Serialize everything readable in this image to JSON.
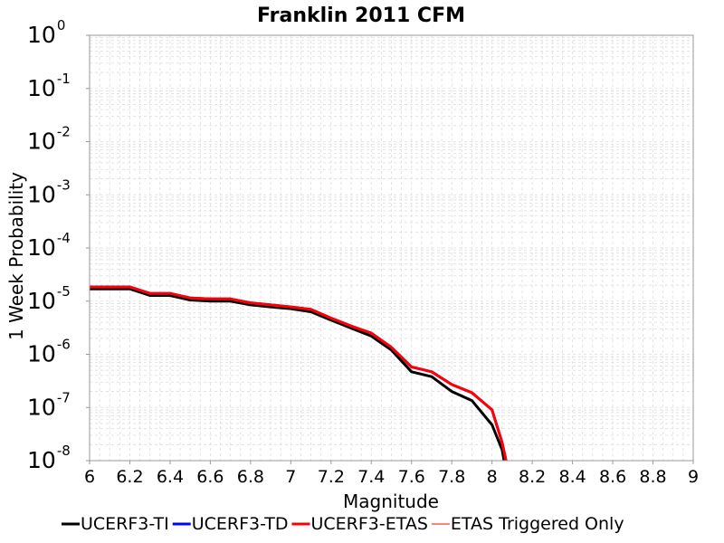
{
  "chart_data": {
    "type": "line",
    "title": "Franklin 2011 CFM",
    "xlabel": "Magnitude",
    "ylabel": "1 Week Probability",
    "xlim": [
      6,
      9
    ],
    "ylim": [
      1e-08,
      1
    ],
    "yscale": "log",
    "grid": true,
    "legend_placement": "bottom",
    "x_ticks": [
      "6",
      "6.2",
      "6.4",
      "6.6",
      "6.8",
      "7",
      "7.2",
      "7.4",
      "7.6",
      "7.8",
      "8",
      "8.2",
      "8.4",
      "8.6",
      "8.8",
      "9"
    ],
    "y_ticks": [
      {
        "base": "10",
        "exp": "0"
      },
      {
        "base": "10",
        "exp": "-1"
      },
      {
        "base": "10",
        "exp": "-2"
      },
      {
        "base": "10",
        "exp": "-3"
      },
      {
        "base": "10",
        "exp": "-4"
      },
      {
        "base": "10",
        "exp": "-5"
      },
      {
        "base": "10",
        "exp": "-6"
      },
      {
        "base": "10",
        "exp": "-7"
      },
      {
        "base": "10",
        "exp": "-8"
      }
    ],
    "series": [
      {
        "name": "UCERF3-TI",
        "color": "#000000",
        "x": [
          6.0,
          6.1,
          6.2,
          6.3,
          6.4,
          6.5,
          6.6,
          6.7,
          6.8,
          6.9,
          7.0,
          7.1,
          7.2,
          7.3,
          7.4,
          7.5,
          7.6,
          7.7,
          7.8,
          7.9,
          8.0,
          8.05,
          8.06
        ],
        "y": [
          1.7e-05,
          1.7e-05,
          1.7e-05,
          1.28e-05,
          1.28e-05,
          1.05e-05,
          1e-05,
          1e-05,
          8.5e-06,
          7.8e-06,
          7.2e-06,
          6.3e-06,
          4.4e-06,
          3.1e-06,
          2.2e-06,
          1.2e-06,
          4.7e-07,
          3.8e-07,
          2e-07,
          1.35e-07,
          4.7e-08,
          1.6e-08,
          1e-08
        ]
      },
      {
        "name": "UCERF3-TD",
        "color": "#0000ff",
        "x": [
          6.0,
          6.1,
          6.2,
          6.3,
          6.4,
          6.5,
          6.6,
          6.7,
          6.8,
          6.9,
          7.0,
          7.1,
          7.2,
          7.3,
          7.4,
          7.5,
          7.6,
          7.7,
          7.8,
          7.9,
          8.0,
          8.05,
          8.07
        ],
        "y": [
          1.85e-05,
          1.85e-05,
          1.85e-05,
          1.4e-05,
          1.4e-05,
          1.15e-05,
          1.1e-05,
          1.1e-05,
          9.3e-06,
          8.5e-06,
          7.8e-06,
          7e-06,
          4.8e-06,
          3.4e-06,
          2.5e-06,
          1.35e-06,
          5.8e-07,
          4.7e-07,
          2.7e-07,
          1.9e-07,
          9e-08,
          2.2e-08,
          1e-08
        ]
      },
      {
        "name": "UCERF3-ETAS",
        "color": "#ff0000",
        "x": [
          6.0,
          6.1,
          6.2,
          6.3,
          6.4,
          6.5,
          6.6,
          6.7,
          6.8,
          6.9,
          7.0,
          7.1,
          7.2,
          7.3,
          7.4,
          7.5,
          7.6,
          7.7,
          7.8,
          7.9,
          8.0,
          8.05,
          8.07
        ],
        "y": [
          1.85e-05,
          1.85e-05,
          1.85e-05,
          1.4e-05,
          1.4e-05,
          1.15e-05,
          1.1e-05,
          1.1e-05,
          9.3e-06,
          8.5e-06,
          7.8e-06,
          7e-06,
          4.8e-06,
          3.4e-06,
          2.5e-06,
          1.35e-06,
          5.8e-07,
          4.7e-07,
          2.7e-07,
          1.9e-07,
          9e-08,
          2.2e-08,
          1e-08
        ]
      },
      {
        "name": "ETAS Triggered Only",
        "color": "#ff0000",
        "x": [],
        "y": []
      }
    ]
  }
}
